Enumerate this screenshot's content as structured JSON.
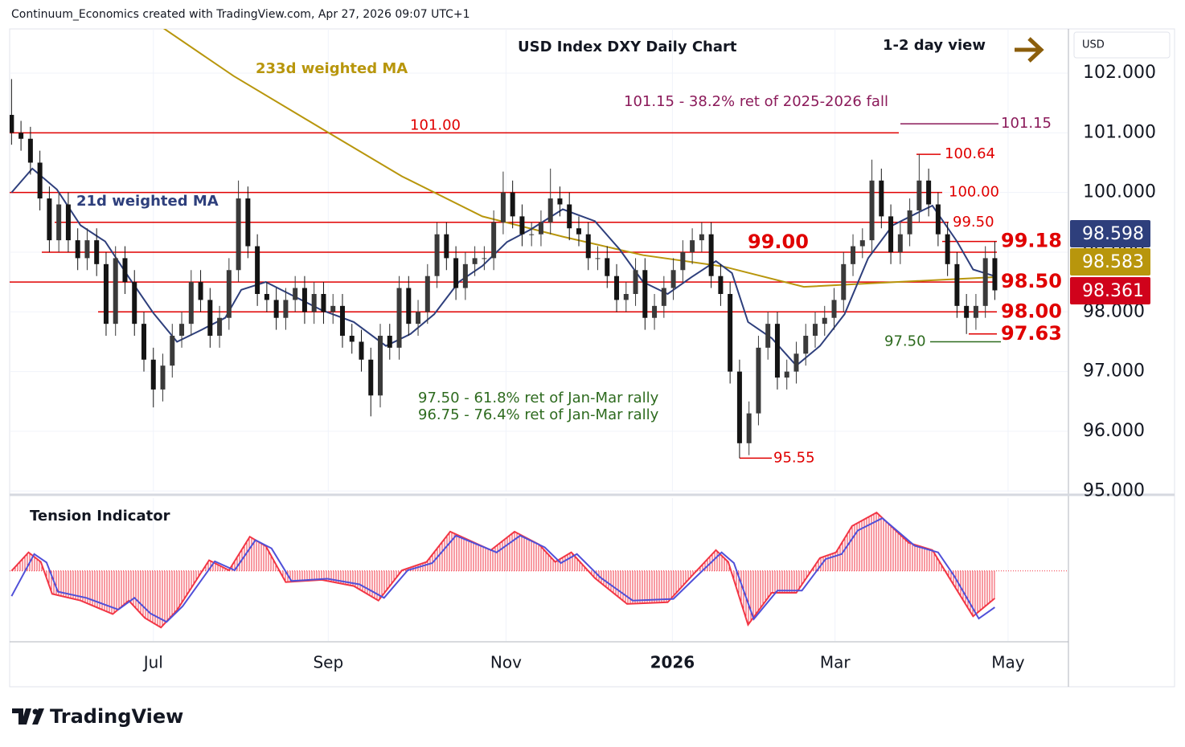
{
  "header": "Continuum_Economics created with TradingView.com, Apr 27, 2026 09:07 UTC+1",
  "footer": "TradingView",
  "chart_data": [
    {
      "type": "candlestick",
      "title": "USD Index DXY Daily Chart",
      "subtitle": "1-2 day view",
      "y_axis_label": "USD",
      "up_color": "#3a3a3a",
      "down_color": "#141414",
      "open": [
        101.3,
        101.0,
        100.9,
        100.5,
        99.9,
        99.2,
        99.8,
        99.2,
        98.9,
        99.2,
        98.8,
        97.8,
        98.9,
        98.5,
        97.8,
        97.2,
        96.7,
        97.1,
        97.6,
        97.8,
        98.5,
        98.2,
        97.6,
        97.9,
        98.7,
        99.9,
        99.1,
        98.3,
        98.2,
        97.9,
        98.2,
        98.4,
        98.0,
        98.3,
        98.0,
        98.1,
        97.6,
        97.5,
        97.2,
        96.6,
        97.6,
        97.4,
        98.4,
        97.8,
        98.0,
        98.6,
        99.3,
        98.9,
        98.4,
        98.8,
        98.9,
        98.9,
        99.5,
        100.0,
        99.6,
        99.3,
        99.3,
        99.5,
        99.9,
        99.8,
        99.4,
        99.3,
        98.9,
        98.9,
        98.6,
        98.2,
        98.3,
        98.7,
        97.9,
        98.1,
        98.4,
        98.7,
        99.0,
        99.2,
        99.3,
        98.6,
        98.3,
        97.0,
        95.8,
        96.3,
        97.4,
        97.8,
        96.9,
        97.0,
        97.3,
        97.6,
        97.8,
        97.9,
        98.2,
        98.8,
        99.1,
        99.2,
        100.2,
        99.6,
        99.0,
        99.3,
        99.7,
        100.2,
        99.8,
        99.3,
        98.8,
        98.1,
        97.9,
        98.1,
        98.9
      ],
      "high": [
        101.9,
        101.2,
        101.1,
        100.7,
        100.1,
        100.0,
        100.0,
        99.4,
        99.4,
        99.4,
        99.0,
        99.1,
        99.1,
        98.7,
        98.0,
        97.4,
        97.3,
        97.8,
        98.0,
        98.7,
        98.7,
        98.4,
        98.1,
        98.9,
        100.2,
        100.1,
        99.3,
        98.5,
        98.4,
        98.4,
        98.6,
        98.6,
        98.5,
        98.5,
        98.3,
        98.3,
        97.8,
        97.7,
        97.4,
        97.8,
        97.8,
        98.6,
        98.6,
        98.2,
        98.8,
        99.5,
        99.5,
        99.1,
        99.0,
        99.1,
        99.1,
        99.7,
        100.35,
        100.2,
        99.8,
        99.5,
        99.7,
        100.4,
        100.1,
        100.0,
        99.6,
        99.5,
        99.1,
        99.1,
        98.8,
        98.5,
        98.9,
        98.9,
        98.3,
        98.6,
        98.9,
        99.2,
        99.4,
        99.5,
        99.5,
        98.8,
        98.5,
        97.2,
        96.5,
        97.6,
        98.0,
        98.0,
        97.2,
        97.5,
        97.8,
        98.0,
        98.1,
        98.4,
        99.0,
        99.3,
        99.4,
        100.55,
        100.4,
        99.8,
        99.5,
        99.9,
        100.64,
        100.4,
        100.0,
        99.5,
        99.0,
        98.3,
        98.3,
        99.1,
        99.18
      ],
      "low": [
        100.8,
        100.7,
        100.3,
        99.7,
        99.0,
        99.0,
        99.0,
        98.7,
        98.7,
        98.6,
        97.6,
        97.6,
        98.3,
        97.6,
        97.0,
        96.4,
        96.5,
        96.9,
        97.4,
        97.6,
        98.0,
        97.4,
        97.4,
        97.7,
        98.5,
        98.9,
        98.1,
        98.0,
        97.7,
        97.7,
        98.0,
        97.8,
        97.8,
        97.8,
        97.8,
        97.4,
        97.3,
        97.0,
        96.25,
        96.4,
        97.2,
        97.2,
        97.6,
        97.6,
        97.8,
        98.4,
        98.7,
        98.2,
        98.2,
        98.6,
        98.7,
        98.7,
        99.3,
        99.4,
        99.1,
        99.1,
        99.1,
        99.3,
        99.6,
        99.2,
        99.1,
        98.7,
        98.7,
        98.4,
        98.0,
        98.0,
        98.1,
        97.7,
        97.7,
        97.9,
        98.2,
        98.5,
        98.8,
        99.0,
        98.4,
        98.1,
        96.8,
        95.55,
        95.6,
        96.1,
        97.2,
        96.7,
        96.7,
        96.8,
        97.1,
        97.4,
        97.6,
        97.7,
        98.0,
        98.6,
        98.9,
        99.0,
        99.4,
        98.8,
        98.8,
        99.1,
        99.5,
        99.6,
        99.1,
        98.6,
        97.9,
        97.63,
        97.7,
        97.9,
        98.2
      ],
      "close": [
        101.0,
        100.9,
        100.5,
        99.9,
        99.2,
        99.8,
        99.2,
        98.9,
        99.2,
        98.8,
        97.8,
        98.9,
        98.5,
        97.8,
        97.2,
        96.7,
        97.1,
        97.6,
        97.8,
        98.5,
        98.2,
        97.6,
        97.9,
        98.7,
        99.9,
        99.1,
        98.3,
        98.2,
        97.9,
        98.2,
        98.4,
        98.0,
        98.3,
        98.0,
        98.1,
        97.6,
        97.5,
        97.2,
        96.6,
        97.6,
        97.4,
        98.4,
        97.8,
        98.0,
        98.6,
        99.3,
        98.9,
        98.4,
        98.8,
        98.9,
        98.9,
        99.5,
        100.0,
        99.6,
        99.3,
        99.3,
        99.5,
        99.9,
        99.8,
        99.4,
        99.3,
        98.9,
        98.9,
        98.6,
        98.2,
        98.3,
        98.7,
        97.9,
        98.1,
        98.4,
        98.7,
        99.0,
        99.2,
        99.3,
        98.6,
        98.3,
        97.0,
        95.8,
        96.3,
        97.4,
        97.8,
        96.9,
        97.0,
        97.3,
        97.6,
        97.8,
        97.9,
        98.2,
        98.8,
        99.1,
        99.2,
        100.2,
        99.6,
        99.0,
        99.3,
        99.7,
        100.2,
        99.8,
        99.3,
        98.8,
        98.1,
        97.9,
        98.1,
        98.9,
        98.361
      ],
      "xlim": [
        -0.2,
        111.7
      ],
      "xticks": [
        {
          "value": 15,
          "label": "Jul"
        },
        {
          "value": 33.5,
          "label": "Sep"
        },
        {
          "value": 52.3,
          "label": "Nov"
        },
        {
          "value": 69.9,
          "label": "2026"
        },
        {
          "value": 87.1,
          "label": "Mar"
        },
        {
          "value": 105.4,
          "label": "May"
        }
      ],
      "ylim": [
        94.99,
        102.74
      ],
      "yticks": [
        {
          "value": 95,
          "label": "95.000"
        },
        {
          "value": 96,
          "label": "96.000"
        },
        {
          "value": 97,
          "label": "97.000"
        },
        {
          "value": 98,
          "label": "98.000"
        },
        {
          "value": 99,
          "label": "99.000"
        },
        {
          "value": 100,
          "label": "100.000"
        },
        {
          "value": 101,
          "label": "101.000"
        },
        {
          "value": 102,
          "label": "102.000"
        }
      ],
      "grid": true,
      "series": [
        {
          "name": "233d weighted MA",
          "color": "#b8960c",
          "x": [
            15.8,
            23.5,
            32.8,
            41.3,
            49.8,
            58.3,
            66.8,
            75.3,
            83.8,
            92.3,
            104
          ],
          "values": [
            102.78,
            101.95,
            101.07,
            100.27,
            99.6,
            99.26,
            98.95,
            98.76,
            98.42,
            98.49,
            98.583
          ]
        },
        {
          "name": "21d weighted MA",
          "color": "#2e3f7c",
          "x": [
            0,
            2.2,
            4.8,
            7.3,
            9.9,
            12.4,
            15.0,
            17.5,
            20.1,
            22.6,
            24.3,
            26.9,
            29.4,
            32.8,
            36.2,
            39.6,
            42.2,
            44.7,
            47.3,
            49.8,
            52.4,
            54.9,
            58.3,
            61.7,
            64.3,
            66.8,
            69.4,
            71.9,
            74.5,
            76.2,
            77.9,
            80.4,
            83.0,
            85.5,
            88.1,
            90.6,
            93.2,
            95.7,
            97.4,
            100.0,
            101.7,
            104
          ],
          "values": [
            100.0,
            100.4,
            100.05,
            99.45,
            99.18,
            98.58,
            97.98,
            97.5,
            97.7,
            97.9,
            98.37,
            98.5,
            98.3,
            98.03,
            97.83,
            97.43,
            97.63,
            97.96,
            98.5,
            98.77,
            99.17,
            99.38,
            99.72,
            99.52,
            99.05,
            98.5,
            98.3,
            98.58,
            98.85,
            98.65,
            97.83,
            97.56,
            97.1,
            97.43,
            97.96,
            98.9,
            99.45,
            99.65,
            99.78,
            99.18,
            98.71,
            98.598
          ]
        }
      ],
      "levels": [
        {
          "value": 101,
          "label": "101.00",
          "color": "#e00000"
        },
        {
          "value": 100,
          "label": "100.00",
          "color": "#e00000"
        },
        {
          "value": 99.5,
          "label": "99.50",
          "color": "#e00000"
        },
        {
          "value": 99,
          "label": "99.00",
          "color": "#e00000"
        },
        {
          "value": 98.5,
          "label": "98.50",
          "color": "#e00000"
        },
        {
          "value": 98,
          "label": "98.00",
          "color": "#e00000"
        },
        {
          "value": 101.15,
          "color": "#8b1a5a"
        },
        {
          "value": 100.64,
          "color": "#e00000"
        },
        {
          "value": 99.18,
          "color": "#e00000"
        },
        {
          "value": 97.63,
          "color": "#e00000"
        },
        {
          "value": 95.55,
          "color": "#e00000"
        },
        {
          "value": 97.5,
          "label": "97.50",
          "color": "#2e6b1f"
        }
      ],
      "annotations": [
        "101.15 - 38.2% ret of 2025-2026 fall",
        "97.50 - 61.8% ret of Jan-Mar rally",
        "96.75 - 76.4% ret of Jan-Mar rally"
      ],
      "price_labels": [
        {
          "value": 98.598,
          "color": "#2e3f7c"
        },
        {
          "value": 98.583,
          "color": "#b8960c"
        },
        {
          "value": 98.361,
          "color": "#d0021b"
        }
      ]
    },
    {
      "type": "line",
      "title": "Tension Indicator",
      "xlim": [
        -0.2,
        111.7
      ],
      "ylim": [
        -1.25,
        1.3
      ],
      "series": [
        {
          "color": "#f23645",
          "x": [
            0,
            1.8,
            3.1,
            4.3,
            7.3,
            10.7,
            12.4,
            14.1,
            15.8,
            17.5,
            20.9,
            23.0,
            25.2,
            26.9,
            29.0,
            32.8,
            36.2,
            38.8,
            41.3,
            43.9,
            46.4,
            50.7,
            53.2,
            55.8,
            57.5,
            59.2,
            61.7,
            65.1,
            69.4,
            71.9,
            74.5,
            75.8,
            77.9,
            80.4,
            83.0,
            85.5,
            87.2,
            88.9,
            91.5,
            94.9,
            97.4,
            99.1,
            101.7,
            104
          ],
          "values": [
            0.0,
            0.33,
            0.16,
            -0.41,
            -0.53,
            -0.77,
            -0.53,
            -0.84,
            -1.01,
            -0.7,
            0.19,
            0.01,
            0.61,
            0.44,
            -0.2,
            -0.16,
            -0.27,
            -0.53,
            0.01,
            0.16,
            0.7,
            0.37,
            0.7,
            0.47,
            0.16,
            0.33,
            -0.13,
            -0.59,
            -0.56,
            -0.1,
            0.37,
            0.16,
            -0.96,
            -0.39,
            -0.39,
            0.23,
            0.33,
            0.8,
            1.04,
            0.5,
            0.37,
            -0.1,
            -0.81,
            -0.49
          ]
        },
        {
          "color": "#5050d8",
          "x": [
            0,
            2.4,
            3.7,
            4.9,
            7.9,
            11.3,
            13.0,
            14.7,
            16.4,
            18.1,
            21.5,
            23.6,
            25.8,
            27.5,
            29.6,
            33.4,
            36.8,
            39.4,
            41.9,
            44.5,
            47.0,
            51.3,
            53.8,
            56.4,
            58.1,
            59.8,
            62.3,
            65.7,
            70.0,
            72.5,
            75.1,
            76.4,
            78.5,
            81.0,
            83.6,
            86.1,
            87.8,
            89.5,
            92.1,
            95.5,
            98.0,
            99.7,
            102.3,
            104
          ],
          "values": [
            -0.45,
            0.3,
            0.15,
            -0.37,
            -0.48,
            -0.69,
            -0.48,
            -0.76,
            -0.91,
            -0.63,
            0.17,
            0.01,
            0.55,
            0.4,
            -0.18,
            -0.14,
            -0.24,
            -0.48,
            0.01,
            0.14,
            0.63,
            0.33,
            0.63,
            0.42,
            0.14,
            0.3,
            -0.12,
            -0.53,
            -0.5,
            -0.09,
            0.33,
            0.14,
            -0.86,
            -0.35,
            -0.35,
            0.21,
            0.3,
            0.72,
            0.94,
            0.45,
            0.33,
            -0.09,
            -0.85,
            -0.65
          ]
        }
      ]
    }
  ]
}
